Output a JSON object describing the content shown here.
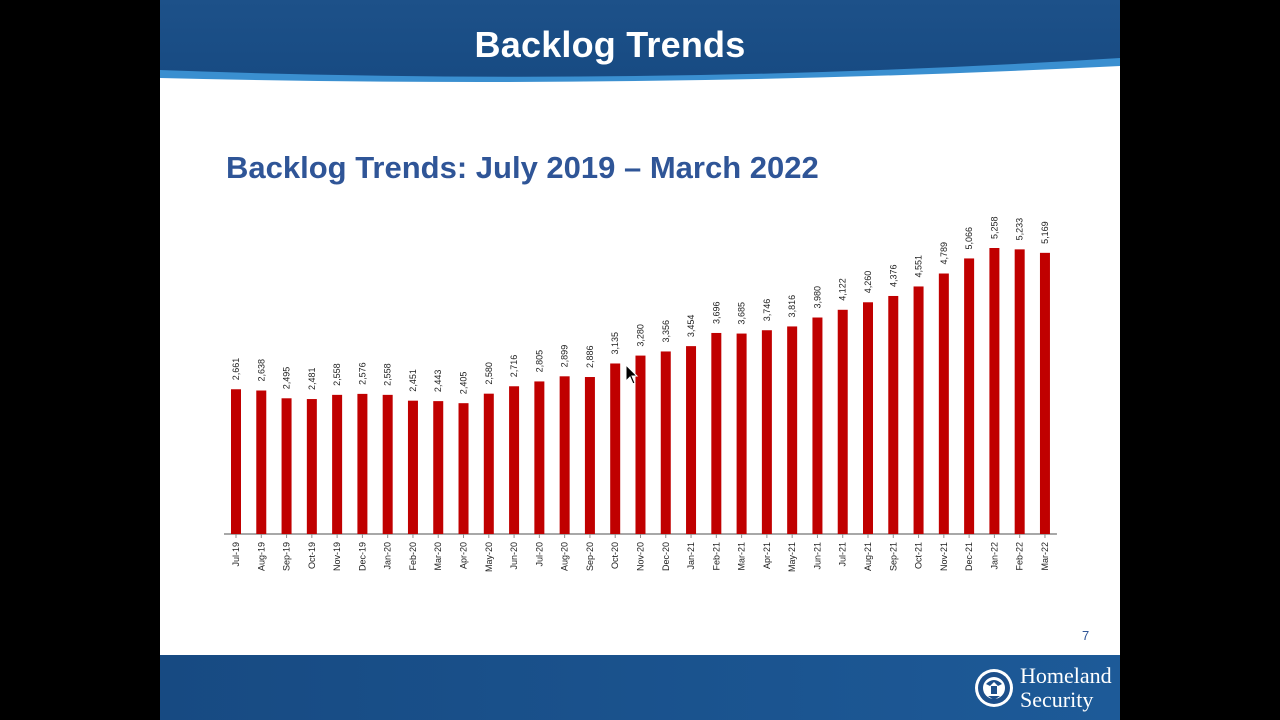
{
  "slide": {
    "title": "Backlog Trends",
    "subtitle": "Backlog Trends: July 2019 – March 2022",
    "page_number": "7"
  },
  "logo": {
    "line1": "Homeland",
    "line2": "Security",
    "seal_icon": "dhs-seal-icon"
  },
  "colors": {
    "header_blue": "#1f5a96",
    "title_blue": "#2f5597",
    "bar_red": "#c00000"
  },
  "chart_data": {
    "type": "bar",
    "categories": [
      "Jul-19",
      "Aug-19",
      "Sep-19",
      "Oct-19",
      "Nov-19",
      "Dec-19",
      "Jan-20",
      "Feb-20",
      "Mar-20",
      "Apr-20",
      "May-20",
      "Jun-20",
      "Jul-20",
      "Aug-20",
      "Sep-20",
      "Oct-20",
      "Nov-20",
      "Dec-20",
      "Jan-21",
      "Feb-21",
      "Mar-21",
      "Apr-21",
      "May-21",
      "Jun-21",
      "Jul-21",
      "Aug-21",
      "Sep-21",
      "Oct-21",
      "Nov-21",
      "Dec-21",
      "Jan-22",
      "Feb-22",
      "Mar-22"
    ],
    "values": [
      2661,
      2638,
      2495,
      2481,
      2558,
      2576,
      2558,
      2451,
      2443,
      2405,
      2580,
      2716,
      2805,
      2899,
      2886,
      3135,
      3280,
      3356,
      3454,
      3696,
      3685,
      3746,
      3816,
      3980,
      4122,
      4260,
      4376,
      4551,
      4789,
      5066,
      5258,
      5233,
      5169
    ],
    "labels": [
      "2,661",
      "2,638",
      "2,495",
      "2,481",
      "2,558",
      "2,576",
      "2,558",
      "2,451",
      "2,443",
      "2,405",
      "2,580",
      "2,716",
      "2,805",
      "2,899",
      "2,886",
      "3,135",
      "3,280",
      "3,356",
      "3,454",
      "3,696",
      "3,685",
      "3,746",
      "3,816",
      "3,980",
      "4,122",
      "4,260",
      "4,376",
      "4,551",
      "4,789",
      "5,066",
      "5,258",
      "5,233",
      "5,169"
    ],
    "ylim": [
      0,
      5300
    ],
    "grid": false,
    "legend": "none",
    "xlabel": "",
    "ylabel": ""
  }
}
